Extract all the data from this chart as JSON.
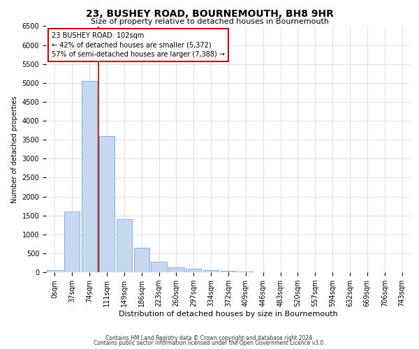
{
  "title": "23, BUSHEY ROAD, BOURNEMOUTH, BH8 9HR",
  "subtitle": "Size of property relative to detached houses in Bournemouth",
  "xlabel": "Distribution of detached houses by size in Bournemouth",
  "ylabel": "Number of detached properties",
  "footer1": "Contains HM Land Registry data © Crown copyright and database right 2024.",
  "footer2": "Contains public sector information licensed under the Open Government Licence v3.0.",
  "bar_labels": [
    "0sqm",
    "37sqm",
    "74sqm",
    "111sqm",
    "149sqm",
    "186sqm",
    "223sqm",
    "260sqm",
    "297sqm",
    "334sqm",
    "372sqm",
    "409sqm",
    "446sqm",
    "483sqm",
    "520sqm",
    "557sqm",
    "594sqm",
    "632sqm",
    "669sqm",
    "706sqm",
    "743sqm"
  ],
  "bar_values": [
    50,
    1600,
    5050,
    3600,
    1400,
    650,
    280,
    130,
    90,
    60,
    30,
    10,
    5,
    0,
    0,
    0,
    0,
    0,
    0,
    0,
    0
  ],
  "bar_color": "#c5d8f0",
  "bar_edge_color": "#5b9bd5",
  "vline_pos": 2.5,
  "vline_color": "#cc0000",
  "ylim": [
    0,
    6500
  ],
  "yticks": [
    0,
    500,
    1000,
    1500,
    2000,
    2500,
    3000,
    3500,
    4000,
    4500,
    5000,
    5500,
    6000,
    6500
  ],
  "annotation_title": "23 BUSHEY ROAD: 102sqm",
  "annotation_line1": "← 42% of detached houses are smaller (5,372)",
  "annotation_line2": "57% of semi-detached houses are larger (7,388) →",
  "background_color": "#ffffff",
  "grid_color": "#d0d8e8",
  "title_fontsize": 10,
  "subtitle_fontsize": 8,
  "xlabel_fontsize": 8,
  "ylabel_fontsize": 7,
  "tick_fontsize": 7,
  "annot_fontsize": 7,
  "footer_fontsize": 5.5
}
